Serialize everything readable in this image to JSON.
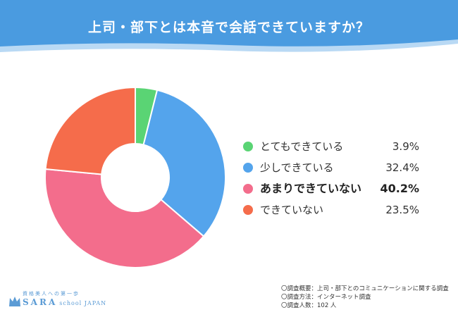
{
  "title": "上司・部下とは本音で会話できていますか？",
  "colors": {
    "header": "#4a9be0",
    "header_wave": "#b9d9f4"
  },
  "chart_data": {
    "type": "pie",
    "donut": true,
    "title": "上司・部下とは本音で会話できていますか？",
    "slices": [
      {
        "label": "とてもできている",
        "value": 3.9,
        "display": "3.9%",
        "color": "#5ad474"
      },
      {
        "label": "少しできている",
        "value": 32.4,
        "display": "32.4%",
        "color": "#54a4ec"
      },
      {
        "label": "あまりできていない",
        "value": 40.2,
        "display": "40.2%",
        "color": "#f36d8c",
        "highlight": true
      },
      {
        "label": "できていない",
        "value": 23.5,
        "display": "23.5%",
        "color": "#f56c4b"
      }
    ],
    "start_angle_deg": 0,
    "direction": "clockwise",
    "legend_position": "right"
  },
  "notes": [
    "〇調査概要：上司・部下とのコミュニケーションに関する調査",
    "〇調査方法：インターネット調査",
    "〇調査人数：102 人"
  ],
  "logo": {
    "tagline": "資格美人への第一歩",
    "name": "SARA",
    "sub": "school JAPAN"
  }
}
